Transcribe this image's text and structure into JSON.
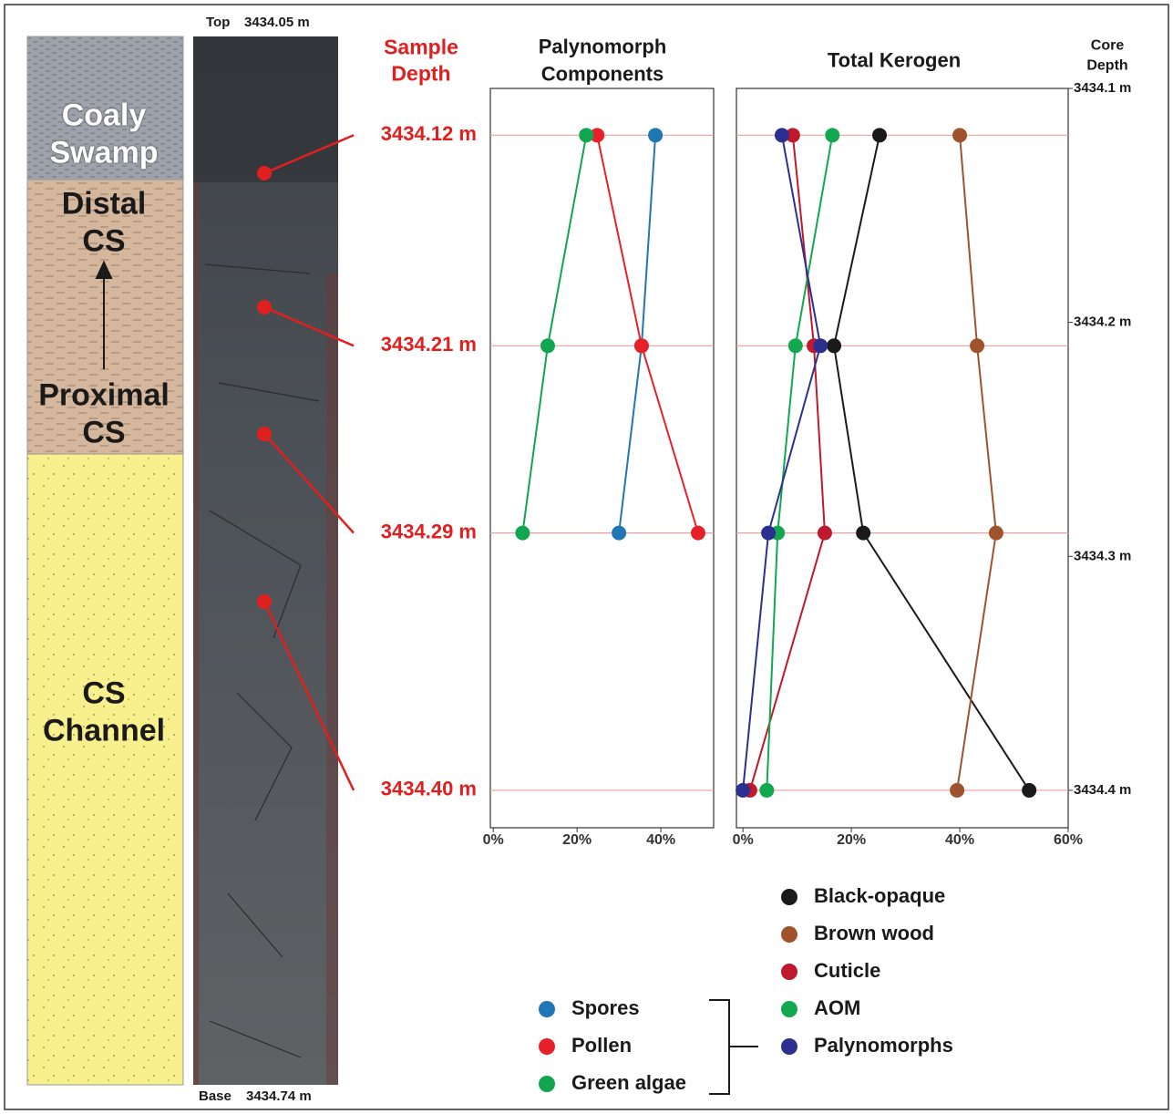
{
  "lithology": {
    "units": [
      "Coaly Swamp",
      "Distal CS",
      "Proximal CS",
      "CS Channel"
    ]
  },
  "core": {
    "top_label": "Top",
    "top_depth": "3434.05 m",
    "base_label": "Base",
    "base_depth": "3434.74 m"
  },
  "samples": {
    "title": "Sample Depth",
    "labels": [
      "3434.12 m",
      "3434.21 m",
      "3434.29 m",
      "3434.40 m"
    ]
  },
  "chart_data": [
    {
      "type": "line",
      "orientation": "horizontal",
      "title": "Palynomorph Components",
      "y": [
        3434.12,
        3434.21,
        3434.29,
        3434.4
      ],
      "ylim": [
        3434.1,
        3434.416
      ],
      "xlim": [
        -0.7,
        52.6
      ],
      "xticks": [
        {
          "value": 0,
          "label": "0%"
        },
        {
          "value": 20,
          "label": "20%"
        },
        {
          "value": 40,
          "label": "40%"
        }
      ],
      "series": [
        {
          "name": "Spores",
          "color": "#1f77b4",
          "values": [
            38.7,
            35.4,
            30,
            null
          ]
        },
        {
          "name": "Pollen",
          "color": "#e8202a",
          "values": [
            24.8,
            35.4,
            48.9,
            null
          ]
        },
        {
          "name": "Green algae",
          "color": "#10a64f",
          "values": [
            22.2,
            13,
            7,
            null
          ]
        }
      ]
    },
    {
      "type": "line",
      "orientation": "horizontal",
      "title": "Total Kerogen",
      "ylabel": "Core Depth",
      "y": [
        3434.12,
        3434.21,
        3434.29,
        3434.4
      ],
      "ylim": [
        3434.1,
        3434.416
      ],
      "yticks": [
        {
          "value": 3434.1,
          "label": "3434.1 m"
        },
        {
          "value": 3434.2,
          "label": "3434.2 m"
        },
        {
          "value": 3434.3,
          "label": "3434.3 m"
        },
        {
          "value": 3434.4,
          "label": "3434.4 m"
        }
      ],
      "xlim": [
        -1.2,
        60
      ],
      "xticks": [
        {
          "value": 0,
          "label": "0%"
        },
        {
          "value": 20,
          "label": "20%"
        },
        {
          "value": 40,
          "label": "40%"
        },
        {
          "value": 60,
          "label": "60%"
        }
      ],
      "series": [
        {
          "name": "Black-opaque",
          "color": "#1a1a1a",
          "values": [
            25.2,
            16.8,
            22.2,
            52.8
          ]
        },
        {
          "name": "Brown wood",
          "color": "#a0522d",
          "values": [
            40,
            43.2,
            46.7,
            39.5
          ]
        },
        {
          "name": "Cuticle",
          "color": "#c0182c",
          "values": [
            9.2,
            13.1,
            15.1,
            1.3
          ]
        },
        {
          "name": "AOM",
          "color": "#12a84f",
          "values": [
            16.5,
            9.7,
            6.4,
            4.4
          ]
        },
        {
          "name": "Palynomorphs",
          "color": "#2b2f8f",
          "values": [
            7.2,
            14.3,
            4.7,
            0
          ]
        }
      ]
    }
  ]
}
